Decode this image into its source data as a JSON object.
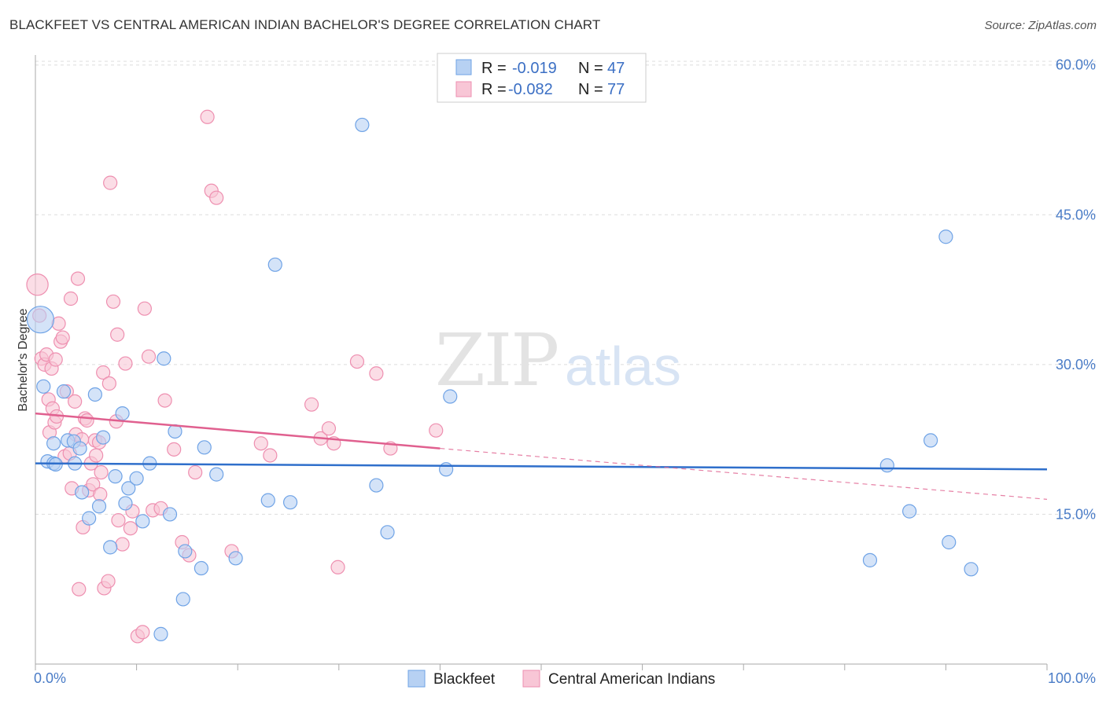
{
  "title": "BLACKFEET VS CENTRAL AMERICAN INDIAN BACHELOR'S DEGREE CORRELATION CHART",
  "source": "Source: ZipAtlas.com",
  "watermark": {
    "zip": "ZIP",
    "atlas": "atlas"
  },
  "chart_data": {
    "type": "scatter",
    "xlabel": "",
    "ylabel": "Bachelor's Degree",
    "xlim": [
      0,
      100
    ],
    "ylim": [
      0,
      61
    ],
    "x_tick_labels": [
      "0.0%",
      "100.0%"
    ],
    "y_ticks": [
      15,
      30,
      45,
      60
    ],
    "y_tick_labels": [
      "15.0%",
      "30.0%",
      "45.0%",
      "60.0%"
    ],
    "legend": [
      {
        "r_label": "R =",
        "r_value": "-0.019",
        "n_label": "N =",
        "n_value": "47"
      },
      {
        "r_label": "R =",
        "r_value": "-0.082",
        "n_label": "N =",
        "n_value": "77"
      }
    ],
    "series": [
      {
        "name": "Blackfeet",
        "color": "#6fa3e6",
        "fill": "#b7d1f3",
        "line_color": "#2f6fcb",
        "trend": {
          "x0": 0,
          "y0": 20.1,
          "x1": 100,
          "y1": 19.5
        },
        "points": [
          [
            0.5,
            34.5,
            2.0
          ],
          [
            0.8,
            27.8,
            1
          ],
          [
            1.2,
            20.3,
            1
          ],
          [
            1.8,
            20.1,
            1
          ],
          [
            1.8,
            22.1,
            1
          ],
          [
            2.0,
            20.0,
            1
          ],
          [
            2.8,
            27.3,
            1
          ],
          [
            3.2,
            22.4,
            1
          ],
          [
            3.8,
            22.3,
            1
          ],
          [
            3.9,
            20.1,
            1
          ],
          [
            4.4,
            21.6,
            1
          ],
          [
            4.6,
            17.2,
            1
          ],
          [
            5.3,
            14.6,
            1
          ],
          [
            5.9,
            27.0,
            1
          ],
          [
            6.3,
            15.8,
            1
          ],
          [
            6.7,
            22.7,
            1
          ],
          [
            7.4,
            11.7,
            1
          ],
          [
            7.9,
            18.8,
            1
          ],
          [
            8.6,
            25.1,
            1
          ],
          [
            8.9,
            16.1,
            1
          ],
          [
            9.2,
            17.6,
            1
          ],
          [
            10.0,
            18.6,
            1
          ],
          [
            10.6,
            14.3,
            1
          ],
          [
            11.3,
            20.1,
            1
          ],
          [
            12.4,
            3.0,
            1
          ],
          [
            12.7,
            30.6,
            1
          ],
          [
            13.3,
            15.0,
            1
          ],
          [
            13.8,
            23.3,
            1
          ],
          [
            14.6,
            6.5,
            1
          ],
          [
            14.8,
            11.3,
            1
          ],
          [
            16.4,
            9.6,
            1
          ],
          [
            16.7,
            21.7,
            1
          ],
          [
            17.9,
            19.0,
            1
          ],
          [
            19.8,
            10.6,
            1
          ],
          [
            23.0,
            16.4,
            1
          ],
          [
            23.7,
            40.0,
            1
          ],
          [
            25.2,
            16.2,
            1
          ],
          [
            32.3,
            54.0,
            1
          ],
          [
            33.7,
            17.9,
            1
          ],
          [
            34.8,
            13.2,
            1
          ],
          [
            40.6,
            19.5,
            1
          ],
          [
            41.0,
            26.8,
            1
          ],
          [
            82.5,
            10.4,
            1
          ],
          [
            84.2,
            19.9,
            1
          ],
          [
            86.4,
            15.3,
            1
          ],
          [
            88.5,
            22.4,
            1
          ],
          [
            90.0,
            42.8,
            1
          ],
          [
            90.3,
            12.2,
            1
          ],
          [
            92.5,
            9.5,
            1
          ]
        ]
      },
      {
        "name": "Central American Indians",
        "color": "#ee8fb0",
        "fill": "#f8c6d6",
        "line_color": "#e0608f",
        "trend": {
          "x0": 0,
          "y0": 25.1,
          "x1": 40,
          "y1": 21.6
        },
        "trend_dashed": {
          "x0": 40,
          "y0": 21.6,
          "x1": 100,
          "y1": 16.5
        },
        "points": [
          [
            0.2,
            38.0,
            1.6
          ],
          [
            0.4,
            34.9,
            1
          ],
          [
            0.6,
            30.6,
            1
          ],
          [
            0.9,
            30.0,
            1
          ],
          [
            1.1,
            31.0,
            1
          ],
          [
            1.3,
            26.5,
            1
          ],
          [
            1.4,
            23.2,
            1
          ],
          [
            1.6,
            29.6,
            1
          ],
          [
            1.7,
            25.6,
            1
          ],
          [
            1.9,
            24.2,
            1
          ],
          [
            2.0,
            30.5,
            1
          ],
          [
            2.1,
            24.8,
            1
          ],
          [
            2.3,
            34.1,
            1
          ],
          [
            2.5,
            32.3,
            1
          ],
          [
            2.7,
            32.7,
            1
          ],
          [
            2.9,
            20.8,
            1
          ],
          [
            3.1,
            27.3,
            1
          ],
          [
            3.4,
            21.1,
            1
          ],
          [
            3.5,
            36.6,
            1
          ],
          [
            3.6,
            17.6,
            1
          ],
          [
            3.9,
            26.3,
            1
          ],
          [
            4.0,
            23.0,
            1
          ],
          [
            4.2,
            38.6,
            1
          ],
          [
            4.3,
            7.5,
            1
          ],
          [
            4.6,
            22.5,
            1
          ],
          [
            4.7,
            13.7,
            1
          ],
          [
            4.9,
            24.6,
            1
          ],
          [
            5.1,
            24.4,
            1
          ],
          [
            5.3,
            17.4,
            1
          ],
          [
            5.5,
            20.1,
            1
          ],
          [
            5.7,
            18.0,
            1
          ],
          [
            5.9,
            22.4,
            1
          ],
          [
            6.0,
            20.9,
            1
          ],
          [
            6.3,
            22.2,
            1
          ],
          [
            6.4,
            17.0,
            1
          ],
          [
            6.5,
            19.2,
            1
          ],
          [
            6.7,
            29.2,
            1
          ],
          [
            6.8,
            7.6,
            1
          ],
          [
            7.2,
            8.3,
            1
          ],
          [
            7.3,
            28.1,
            1
          ],
          [
            7.4,
            48.2,
            1
          ],
          [
            7.7,
            36.3,
            1
          ],
          [
            8.0,
            24.3,
            1
          ],
          [
            8.1,
            33.0,
            1
          ],
          [
            8.2,
            14.4,
            1
          ],
          [
            8.6,
            12.0,
            1
          ],
          [
            8.9,
            30.1,
            1
          ],
          [
            9.4,
            13.6,
            1
          ],
          [
            9.6,
            15.3,
            1
          ],
          [
            10.1,
            2.8,
            1
          ],
          [
            10.6,
            3.2,
            1
          ],
          [
            10.8,
            35.6,
            1
          ],
          [
            11.2,
            30.8,
            1
          ],
          [
            11.6,
            15.4,
            1
          ],
          [
            12.4,
            15.6,
            1
          ],
          [
            12.8,
            26.4,
            1
          ],
          [
            13.7,
            21.5,
            1
          ],
          [
            14.5,
            12.2,
            1
          ],
          [
            15.2,
            10.9,
            1
          ],
          [
            15.8,
            19.2,
            1
          ],
          [
            17.0,
            54.8,
            1
          ],
          [
            17.4,
            47.4,
            1
          ],
          [
            17.9,
            46.7,
            1
          ],
          [
            19.4,
            11.3,
            1
          ],
          [
            22.3,
            22.1,
            1
          ],
          [
            23.2,
            20.9,
            1
          ],
          [
            27.3,
            26.0,
            1
          ],
          [
            28.2,
            22.6,
            1
          ],
          [
            29.0,
            23.6,
            1
          ],
          [
            29.5,
            22.1,
            1
          ],
          [
            29.9,
            9.7,
            1
          ],
          [
            31.8,
            30.3,
            1
          ],
          [
            33.7,
            29.1,
            1
          ],
          [
            35.1,
            21.6,
            1
          ],
          [
            39.6,
            23.4,
            1
          ]
        ]
      }
    ]
  },
  "bottom_legend": [
    "Blackfeet",
    "Central American Indians"
  ]
}
